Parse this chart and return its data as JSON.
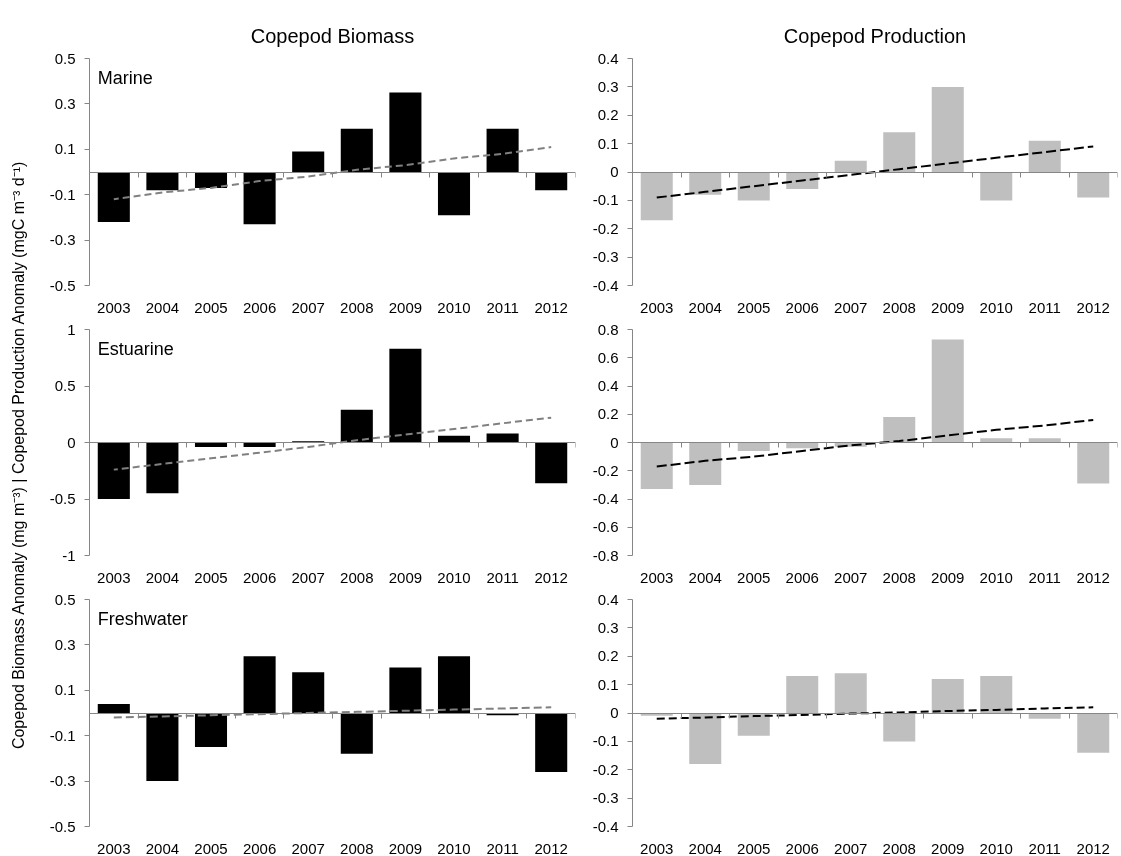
{
  "chart_data": [
    {
      "type": "bar",
      "title": "Copepod Biomass",
      "annotations": [
        "Marine"
      ],
      "categories": [
        "2003",
        "2004",
        "2005",
        "2006",
        "2007",
        "2008",
        "2009",
        "2010",
        "2011",
        "2012"
      ],
      "series": [
        {
          "color": "#000000",
          "values": [
            -0.22,
            -0.08,
            -0.07,
            -0.23,
            0.09,
            0.19,
            0.35,
            -0.19,
            0.19,
            -0.08
          ]
        },
        {
          "type": "line",
          "values": [
            -0.12,
            -0.09,
            -0.07,
            -0.04,
            -0.02,
            0.01,
            0.03,
            0.06,
            0.08,
            0.11
          ],
          "color": "#808080",
          "line_style": "dashed"
        }
      ],
      "ylim": [
        -0.5,
        0.5
      ],
      "yticks": [
        -0.5,
        -0.3,
        -0.1,
        0.1,
        0.3,
        0.5
      ]
    },
    {
      "type": "bar",
      "title": "Copepod Production",
      "categories": [
        "2003",
        "2004",
        "2005",
        "2006",
        "2007",
        "2008",
        "2009",
        "2010",
        "2011",
        "2012"
      ],
      "series": [
        {
          "color": "#bfbfbf",
          "values": [
            -0.17,
            -0.08,
            -0.1,
            -0.06,
            0.04,
            0.14,
            0.3,
            -0.1,
            0.11,
            -0.09
          ]
        },
        {
          "type": "line",
          "values": [
            -0.09,
            -0.07,
            -0.05,
            -0.03,
            -0.01,
            0.01,
            0.03,
            0.05,
            0.07,
            0.09
          ],
          "color": "#000000",
          "line_style": "dashed"
        }
      ],
      "ylim": [
        -0.4,
        0.4
      ],
      "yticks": [
        -0.4,
        -0.3,
        -0.2,
        -0.1,
        0,
        0.1,
        0.2,
        0.3,
        0.4
      ]
    },
    {
      "type": "bar",
      "ylabel": "Copepod Biomass Anomaly (mg m⁻³)   |   Copepod Production Anomaly (mgC m⁻³ d⁻¹)",
      "annotations": [
        "Estuarine"
      ],
      "categories": [
        "2003",
        "2004",
        "2005",
        "2006",
        "2007",
        "2008",
        "2009",
        "2010",
        "2011",
        "2012"
      ],
      "series": [
        {
          "color": "#000000",
          "values": [
            -0.5,
            -0.45,
            -0.04,
            -0.04,
            0.01,
            0.29,
            0.83,
            0.06,
            0.08,
            -0.36
          ]
        },
        {
          "type": "line",
          "values": [
            -0.24,
            -0.19,
            -0.14,
            -0.09,
            -0.04,
            0.02,
            0.07,
            0.12,
            0.17,
            0.22
          ],
          "color": "#808080",
          "line_style": "dashed"
        }
      ],
      "ylim": [
        -1,
        1
      ],
      "yticks": [
        -1,
        -0.5,
        0,
        0.5,
        1
      ]
    },
    {
      "type": "bar",
      "categories": [
        "2003",
        "2004",
        "2005",
        "2006",
        "2007",
        "2008",
        "2009",
        "2010",
        "2011",
        "2012"
      ],
      "series": [
        {
          "color": "#bfbfbf",
          "values": [
            -0.33,
            -0.3,
            -0.06,
            -0.04,
            -0.03,
            0.18,
            0.73,
            0.03,
            0.03,
            -0.29
          ]
        },
        {
          "type": "line",
          "values": [
            -0.17,
            -0.13,
            -0.1,
            -0.06,
            -0.02,
            0.01,
            0.05,
            0.09,
            0.12,
            0.16
          ],
          "color": "#000000",
          "line_style": "dashed"
        }
      ],
      "ylim": [
        -0.8,
        0.8
      ],
      "yticks": [
        -0.8,
        -0.6,
        -0.4,
        -0.2,
        0,
        0.2,
        0.4,
        0.6,
        0.8
      ]
    },
    {
      "type": "bar",
      "annotations": [
        "Freshwater"
      ],
      "categories": [
        "2003",
        "2004",
        "2005",
        "2006",
        "2007",
        "2008",
        "2009",
        "2010",
        "2011",
        "2012"
      ],
      "series": [
        {
          "color": "#000000",
          "values": [
            0.04,
            -0.3,
            -0.15,
            0.25,
            0.18,
            -0.18,
            0.2,
            0.25,
            -0.01,
            -0.26
          ]
        },
        {
          "type": "line",
          "values": [
            -0.02,
            -0.015,
            -0.01,
            -0.005,
            0,
            0.005,
            0.01,
            0.015,
            0.02,
            0.025
          ],
          "color": "#808080",
          "line_style": "dashed"
        }
      ],
      "ylim": [
        -0.5,
        0.5
      ],
      "yticks": [
        -0.5,
        -0.3,
        -0.1,
        0.1,
        0.3,
        0.5
      ]
    },
    {
      "type": "bar",
      "categories": [
        "2003",
        "2004",
        "2005",
        "2006",
        "2007",
        "2008",
        "2009",
        "2010",
        "2011",
        "2012"
      ],
      "series": [
        {
          "color": "#bfbfbf",
          "values": [
            -0.01,
            -0.18,
            -0.08,
            0.13,
            0.14,
            -0.1,
            0.12,
            0.13,
            -0.02,
            -0.14
          ]
        },
        {
          "type": "line",
          "values": [
            -0.02,
            -0.016,
            -0.011,
            -0.007,
            -0.002,
            0.002,
            0.007,
            0.011,
            0.016,
            0.02
          ],
          "color": "#000000",
          "line_style": "dashed"
        }
      ],
      "ylim": [
        -0.4,
        0.4
      ],
      "yticks": [
        -0.4,
        -0.3,
        -0.2,
        -0.1,
        0,
        0.1,
        0.2,
        0.3,
        0.4
      ]
    }
  ]
}
